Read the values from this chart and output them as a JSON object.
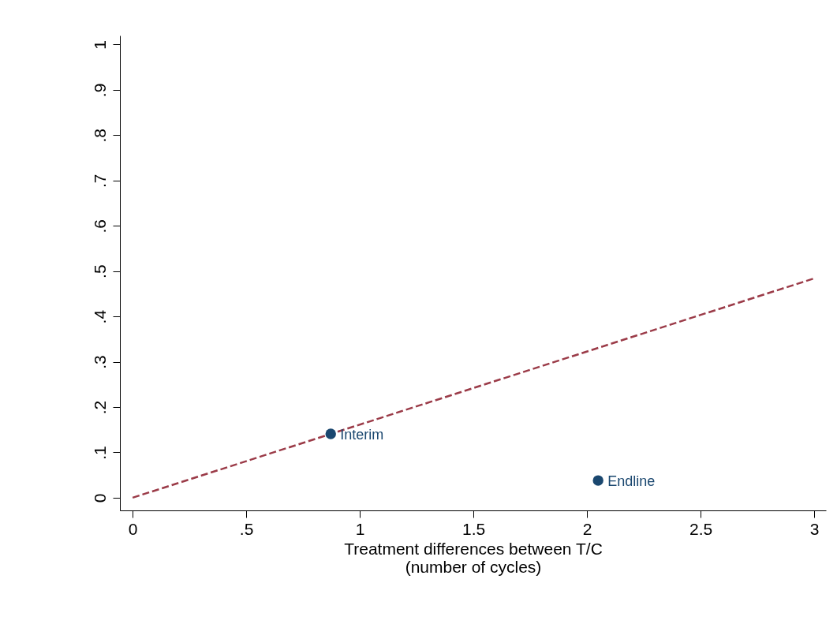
{
  "chart_data": {
    "type": "scatter",
    "xlabel": "Treatment differences between T/C\n(number of cycles)",
    "series": [
      {
        "type": "line",
        "color": "#9b3b48",
        "line_style": "dashed",
        "marker": "none",
        "x": [
          0,
          3
        ],
        "values": [
          0,
          0.484
        ]
      },
      {
        "color": "#1a476f",
        "marker": "circle",
        "x": [
          0.872,
          2.049
        ],
        "values": [
          0.141,
          0.038
        ]
      }
    ],
    "annotations": [
      {
        "text": "Interim",
        "x": 0.872,
        "y": 0.141
      },
      {
        "text": "Endline",
        "x": 2.049,
        "y": 0.038
      }
    ],
    "xlim": [
      -0.056,
      3.052
    ],
    "xticks": [
      0,
      {
        "value": 0.5,
        "label": ".5"
      },
      1,
      1.5,
      2,
      2.5,
      3
    ],
    "ylim": [
      -0.028,
      1.02
    ],
    "yticks": [
      0,
      {
        "value": 0.1,
        "label": ".1"
      },
      {
        "value": 0.2,
        "label": ".2"
      },
      {
        "value": 0.3,
        "label": ".3"
      },
      {
        "value": 0.4,
        "label": ".4"
      },
      {
        "value": 0.5,
        "label": ".5"
      },
      {
        "value": 0.6,
        "label": ".6"
      },
      {
        "value": 0.7,
        "label": ".7"
      },
      {
        "value": 0.8,
        "label": ".8"
      },
      {
        "value": 0.9,
        "label": ".9"
      },
      1
    ],
    "grid": false
  }
}
